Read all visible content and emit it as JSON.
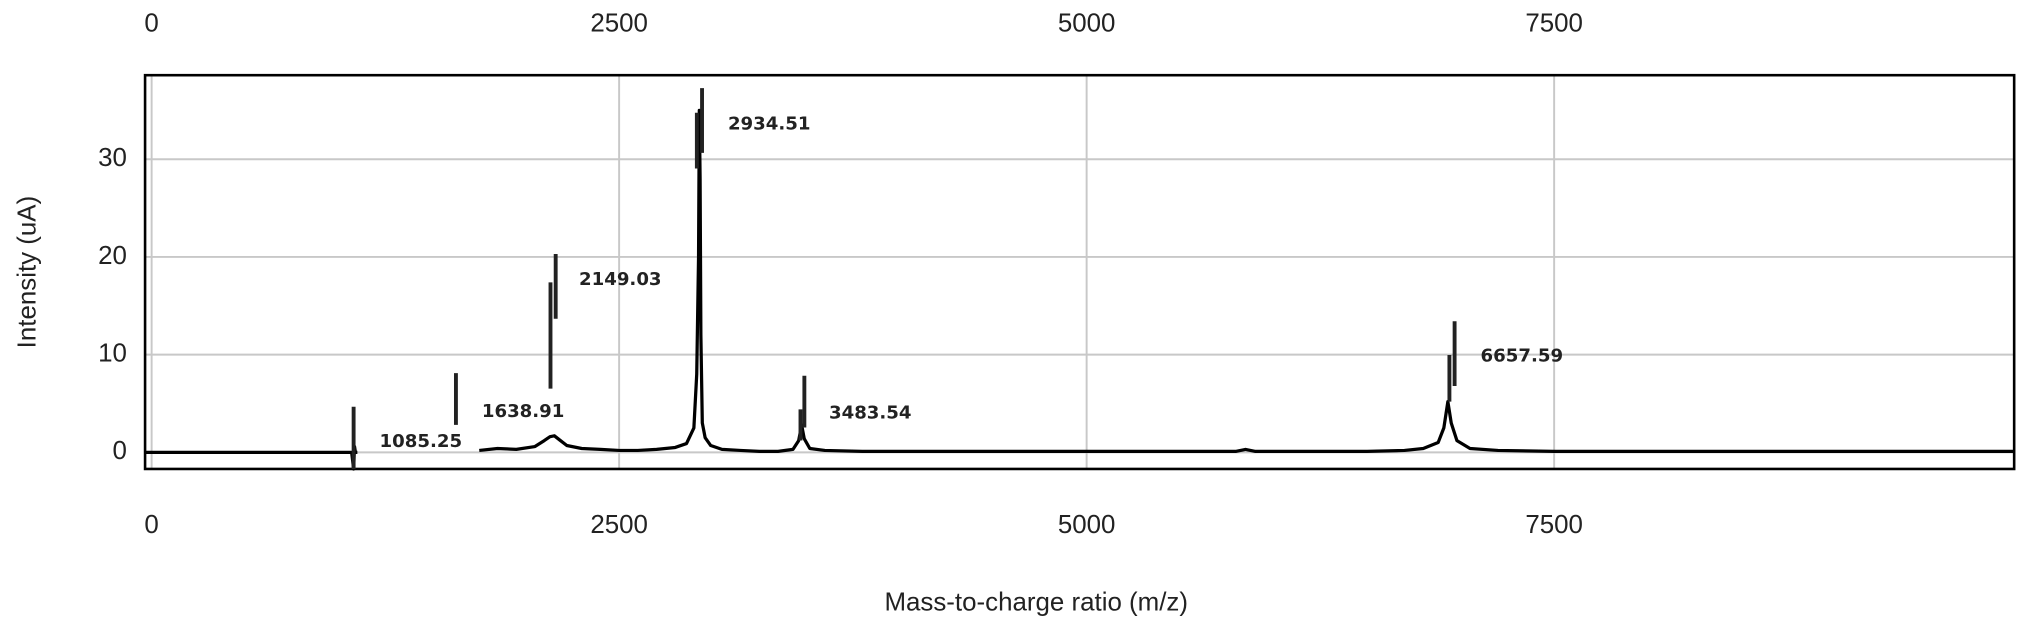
{
  "chart_data": {
    "type": "line",
    "xlabel": "Mass-to-charge ratio (m/z)",
    "ylabel": "Intensity (uA)",
    "xlim": [
      -35,
      9960
    ],
    "xticks": [
      0,
      2500,
      5000,
      7500
    ],
    "ylim": [
      -1.7,
      38.6
    ],
    "yticks": [
      0,
      10,
      20,
      30
    ],
    "grid": true,
    "color": "#000000",
    "x": [
      -35,
      200,
      400,
      600,
      800,
      1000,
      1070,
      1080,
      1085,
      1090,
      1100,
      1400,
      1752,
      1850,
      1950,
      2050,
      2100,
      2130,
      2154,
      2180,
      2220,
      2300,
      2400,
      2500,
      2600,
      2700,
      2800,
      2860,
      2900,
      2915,
      2925,
      2929,
      2933,
      2937,
      2945,
      2960,
      2990,
      3050,
      3150,
      3250,
      3350,
      3430,
      3460,
      3476,
      3490,
      3520,
      3600,
      3800,
      4000,
      4300,
      4600,
      5000,
      5400,
      5800,
      5850,
      5900,
      6200,
      6500,
      6700,
      6800,
      6880,
      6910,
      6932,
      6950,
      6980,
      7050,
      7200,
      7500,
      8000,
      8500,
      9000,
      9500,
      9960
    ],
    "values": [
      0,
      0,
      0,
      0,
      0,
      0,
      0,
      -1.7,
      0.6,
      0,
      0,
      null,
      0.2,
      0.4,
      0.3,
      0.6,
      1.2,
      1.6,
      1.7,
      1.3,
      0.7,
      0.4,
      0.3,
      0.2,
      0.2,
      0.3,
      0.5,
      0.9,
      2.5,
      8,
      20,
      35,
      28,
      12,
      3,
      1.5,
      0.7,
      0.3,
      0.2,
      0.1,
      0.1,
      0.3,
      1.2,
      2.8,
      1.4,
      0.4,
      0.2,
      0.1,
      0.1,
      0.1,
      0.1,
      0.1,
      0.1,
      0.1,
      0.3,
      0.1,
      0.1,
      0.1,
      0.2,
      0.4,
      1,
      2.5,
      5.2,
      3,
      1.2,
      0.4,
      0.2,
      0.1,
      0.1,
      0.1,
      0.1,
      0.1,
      0.1
    ],
    "annotations": [
      "1085.25",
      "1638.91",
      "2149.03",
      "2934.51",
      "3483.54",
      "6657.59"
    ]
  }
}
